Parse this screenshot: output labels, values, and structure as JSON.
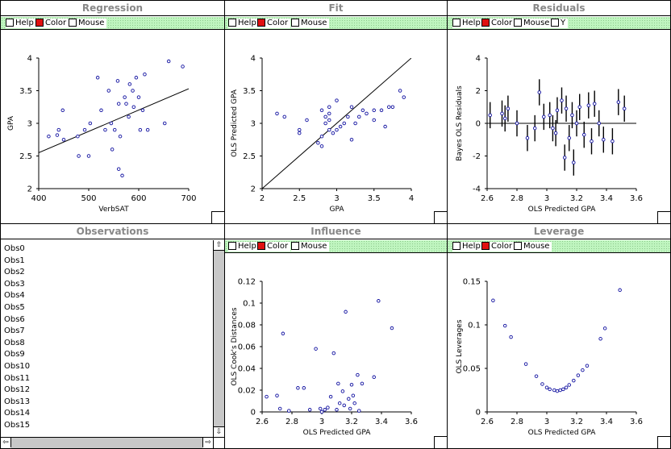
{
  "windows": {
    "regression": {
      "title": "Regression",
      "toolbar": [
        "Help",
        "Color",
        "Mouse"
      ]
    },
    "fit": {
      "title": "Fit",
      "toolbar": [
        "Help",
        "Color",
        "Mouse"
      ]
    },
    "residuals": {
      "title": "Residuals",
      "toolbar": [
        "Help",
        "Color",
        "Mouse",
        "Y"
      ]
    },
    "observations": {
      "title": "Observations",
      "items": [
        "Obs0",
        "Obs1",
        "Obs2",
        "Obs3",
        "Obs4",
        "Obs5",
        "Obs6",
        "Obs7",
        "Obs8",
        "Obs9",
        "Obs10",
        "Obs11",
        "Obs12",
        "Obs13",
        "Obs14",
        "Obs15"
      ]
    },
    "influence": {
      "title": "Influence",
      "toolbar": [
        "Help",
        "Color",
        "Mouse"
      ]
    },
    "leverage": {
      "title": "Leverage",
      "toolbar": [
        "Help",
        "Color",
        "Mouse"
      ]
    }
  },
  "colors": {
    "points": "#1010a0",
    "toolbar_bg": "#bff5bf",
    "color_box": "#e01010",
    "title_text": "#888888"
  },
  "chart_data": [
    {
      "id": "regression",
      "type": "scatter",
      "xlabel": "VerbSAT",
      "ylabel": "GPA",
      "xlim": [
        400,
        700
      ],
      "ylim": [
        2,
        4
      ],
      "xticks": [
        "400",
        "500",
        "600",
        "700"
      ],
      "yticks": [
        "2",
        "2.5",
        "3",
        "3.5",
        "4"
      ],
      "points": [
        [
          420,
          2.8
        ],
        [
          437,
          2.82
        ],
        [
          440,
          2.9
        ],
        [
          448,
          3.2
        ],
        [
          450,
          2.75
        ],
        [
          478,
          2.8
        ],
        [
          480,
          2.5
        ],
        [
          492,
          2.9
        ],
        [
          500,
          2.5
        ],
        [
          503,
          3.0
        ],
        [
          518,
          3.7
        ],
        [
          525,
          3.2
        ],
        [
          533,
          2.9
        ],
        [
          540,
          3.5
        ],
        [
          545,
          3.0
        ],
        [
          547,
          2.6
        ],
        [
          552,
          2.9
        ],
        [
          560,
          2.3
        ],
        [
          558,
          3.65
        ],
        [
          560,
          3.3
        ],
        [
          563,
          2.8
        ],
        [
          567,
          2.2
        ],
        [
          572,
          3.4
        ],
        [
          575,
          3.3
        ],
        [
          580,
          3.1
        ],
        [
          582,
          3.6
        ],
        [
          588,
          3.5
        ],
        [
          590,
          3.25
        ],
        [
          595,
          3.7
        ],
        [
          600,
          3.4
        ],
        [
          603,
          2.9
        ],
        [
          608,
          3.2
        ],
        [
          612,
          3.75
        ],
        [
          618,
          2.9
        ],
        [
          652,
          3.0
        ],
        [
          660,
          3.95
        ],
        [
          688,
          3.87
        ]
      ],
      "fit_line": [
        [
          400,
          2.55
        ],
        [
          700,
          3.53
        ]
      ]
    },
    {
      "id": "fit",
      "type": "scatter",
      "xlabel": "GPA",
      "ylabel": "OLS Predicted GPA",
      "xlim": [
        2,
        4
      ],
      "ylim": [
        2,
        4
      ],
      "xticks": [
        "2",
        "2.5",
        "3",
        "3.5",
        "4"
      ],
      "yticks": [
        "2",
        "2.5",
        "3",
        "3.5",
        "4"
      ],
      "points": [
        [
          2.2,
          3.15
        ],
        [
          2.3,
          3.1
        ],
        [
          2.5,
          2.85
        ],
        [
          2.5,
          2.9
        ],
        [
          2.6,
          3.05
        ],
        [
          2.75,
          2.7
        ],
        [
          2.8,
          2.65
        ],
        [
          2.8,
          2.8
        ],
        [
          2.8,
          3.2
        ],
        [
          2.85,
          3.1
        ],
        [
          2.85,
          3.0
        ],
        [
          2.9,
          2.9
        ],
        [
          2.9,
          3.15
        ],
        [
          2.9,
          3.25
        ],
        [
          2.9,
          3.05
        ],
        [
          2.95,
          2.85
        ],
        [
          3.0,
          2.9
        ],
        [
          3.0,
          3.35
        ],
        [
          3.05,
          2.95
        ],
        [
          3.1,
          3.0
        ],
        [
          3.15,
          3.1
        ],
        [
          3.2,
          2.75
        ],
        [
          3.2,
          3.25
        ],
        [
          3.25,
          3.0
        ],
        [
          3.3,
          3.1
        ],
        [
          3.35,
          3.2
        ],
        [
          3.4,
          3.15
        ],
        [
          3.5,
          3.05
        ],
        [
          3.5,
          3.2
        ],
        [
          3.6,
          3.2
        ],
        [
          3.65,
          2.95
        ],
        [
          3.7,
          3.25
        ],
        [
          3.75,
          3.25
        ],
        [
          3.85,
          3.5
        ],
        [
          3.9,
          3.4
        ]
      ],
      "fit_line": [
        [
          2,
          2
        ],
        [
          4,
          4
        ]
      ]
    },
    {
      "id": "residuals",
      "type": "scatter",
      "xlabel": "OLS Predicted GPA",
      "ylabel": "Bayes OLS Residuals",
      "xlim": [
        2.6,
        3.6
      ],
      "ylim": [
        -4,
        4
      ],
      "xticks": [
        "2.6",
        "2.8",
        "3",
        "3.2",
        "3.4",
        "3.6"
      ],
      "yticks": [
        "-4",
        "-2",
        "0",
        "2",
        "4"
      ],
      "points": [
        [
          2.62,
          0.5
        ],
        [
          2.7,
          0.6
        ],
        [
          2.72,
          0.3
        ],
        [
          2.74,
          0.9
        ],
        [
          2.8,
          0.0
        ],
        [
          2.87,
          -0.9
        ],
        [
          2.92,
          -0.3
        ],
        [
          2.95,
          1.9
        ],
        [
          2.98,
          0.4
        ],
        [
          3.02,
          0.5
        ],
        [
          3.04,
          -0.3
        ],
        [
          3.06,
          -0.6
        ],
        [
          3.07,
          0.8
        ],
        [
          3.1,
          1.4
        ],
        [
          3.12,
          -2.1
        ],
        [
          3.13,
          0.9
        ],
        [
          3.15,
          -0.9
        ],
        [
          3.17,
          0.5
        ],
        [
          3.18,
          -2.4
        ],
        [
          3.2,
          0.0
        ],
        [
          3.22,
          1.0
        ],
        [
          3.25,
          -0.7
        ],
        [
          3.28,
          1.1
        ],
        [
          3.3,
          -1.1
        ],
        [
          3.32,
          1.2
        ],
        [
          3.35,
          0.0
        ],
        [
          3.38,
          -1.0
        ],
        [
          3.44,
          -1.1
        ],
        [
          3.48,
          1.3
        ],
        [
          3.52,
          0.9
        ]
      ],
      "zero_line": 0
    },
    {
      "id": "influence",
      "type": "scatter",
      "xlabel": "OLS Predicted GPA",
      "ylabel": "OLS Cook's Distances",
      "xlim": [
        2.6,
        3.6
      ],
      "ylim": [
        0,
        0.12
      ],
      "xticks": [
        "2.6",
        "2.8",
        "3",
        "3.2",
        "3.4",
        "3.6"
      ],
      "yticks": [
        "0",
        "0.02",
        "0.04",
        "0.06",
        "0.08",
        "0.1",
        "0.12"
      ],
      "points": [
        [
          2.63,
          0.014
        ],
        [
          2.7,
          0.015
        ],
        [
          2.72,
          0.003
        ],
        [
          2.74,
          0.072
        ],
        [
          2.78,
          0.001
        ],
        [
          2.84,
          0.022
        ],
        [
          2.88,
          0.022
        ],
        [
          2.92,
          0.002
        ],
        [
          2.96,
          0.058
        ],
        [
          2.99,
          0.003
        ],
        [
          3.0,
          0.0
        ],
        [
          3.02,
          0.002
        ],
        [
          3.04,
          0.004
        ],
        [
          3.06,
          0.014
        ],
        [
          3.08,
          0.054
        ],
        [
          3.1,
          0.002
        ],
        [
          3.11,
          0.026
        ],
        [
          3.12,
          0.008
        ],
        [
          3.14,
          0.019
        ],
        [
          3.15,
          0.006
        ],
        [
          3.16,
          0.092
        ],
        [
          3.18,
          0.012
        ],
        [
          3.19,
          0.003
        ],
        [
          3.2,
          0.025
        ],
        [
          3.21,
          0.015
        ],
        [
          3.22,
          0.008
        ],
        [
          3.24,
          0.034
        ],
        [
          3.25,
          0.001
        ],
        [
          3.27,
          0.026
        ],
        [
          3.35,
          0.032
        ],
        [
          3.38,
          0.102
        ],
        [
          3.47,
          0.077
        ]
      ]
    },
    {
      "id": "leverage",
      "type": "scatter",
      "xlabel": "OLS Predicted GPA",
      "ylabel": "OLS Leverages",
      "xlim": [
        2.6,
        3.6
      ],
      "ylim": [
        0,
        0.15
      ],
      "xticks": [
        "2.6",
        "2.8",
        "3",
        "3.2",
        "3.4",
        "3.6"
      ],
      "yticks": [
        "0",
        "0.05",
        "0.1",
        "0.15"
      ],
      "points": [
        [
          2.64,
          0.128
        ],
        [
          2.72,
          0.099
        ],
        [
          2.76,
          0.086
        ],
        [
          2.86,
          0.055
        ],
        [
          2.93,
          0.041
        ],
        [
          2.97,
          0.032
        ],
        [
          3.0,
          0.028
        ],
        [
          3.02,
          0.026
        ],
        [
          3.05,
          0.025
        ],
        [
          3.07,
          0.024
        ],
        [
          3.09,
          0.025
        ],
        [
          3.11,
          0.026
        ],
        [
          3.13,
          0.028
        ],
        [
          3.15,
          0.031
        ],
        [
          3.18,
          0.036
        ],
        [
          3.21,
          0.042
        ],
        [
          3.24,
          0.048
        ],
        [
          3.27,
          0.053
        ],
        [
          3.36,
          0.084
        ],
        [
          3.39,
          0.096
        ],
        [
          3.49,
          0.14
        ]
      ]
    }
  ]
}
